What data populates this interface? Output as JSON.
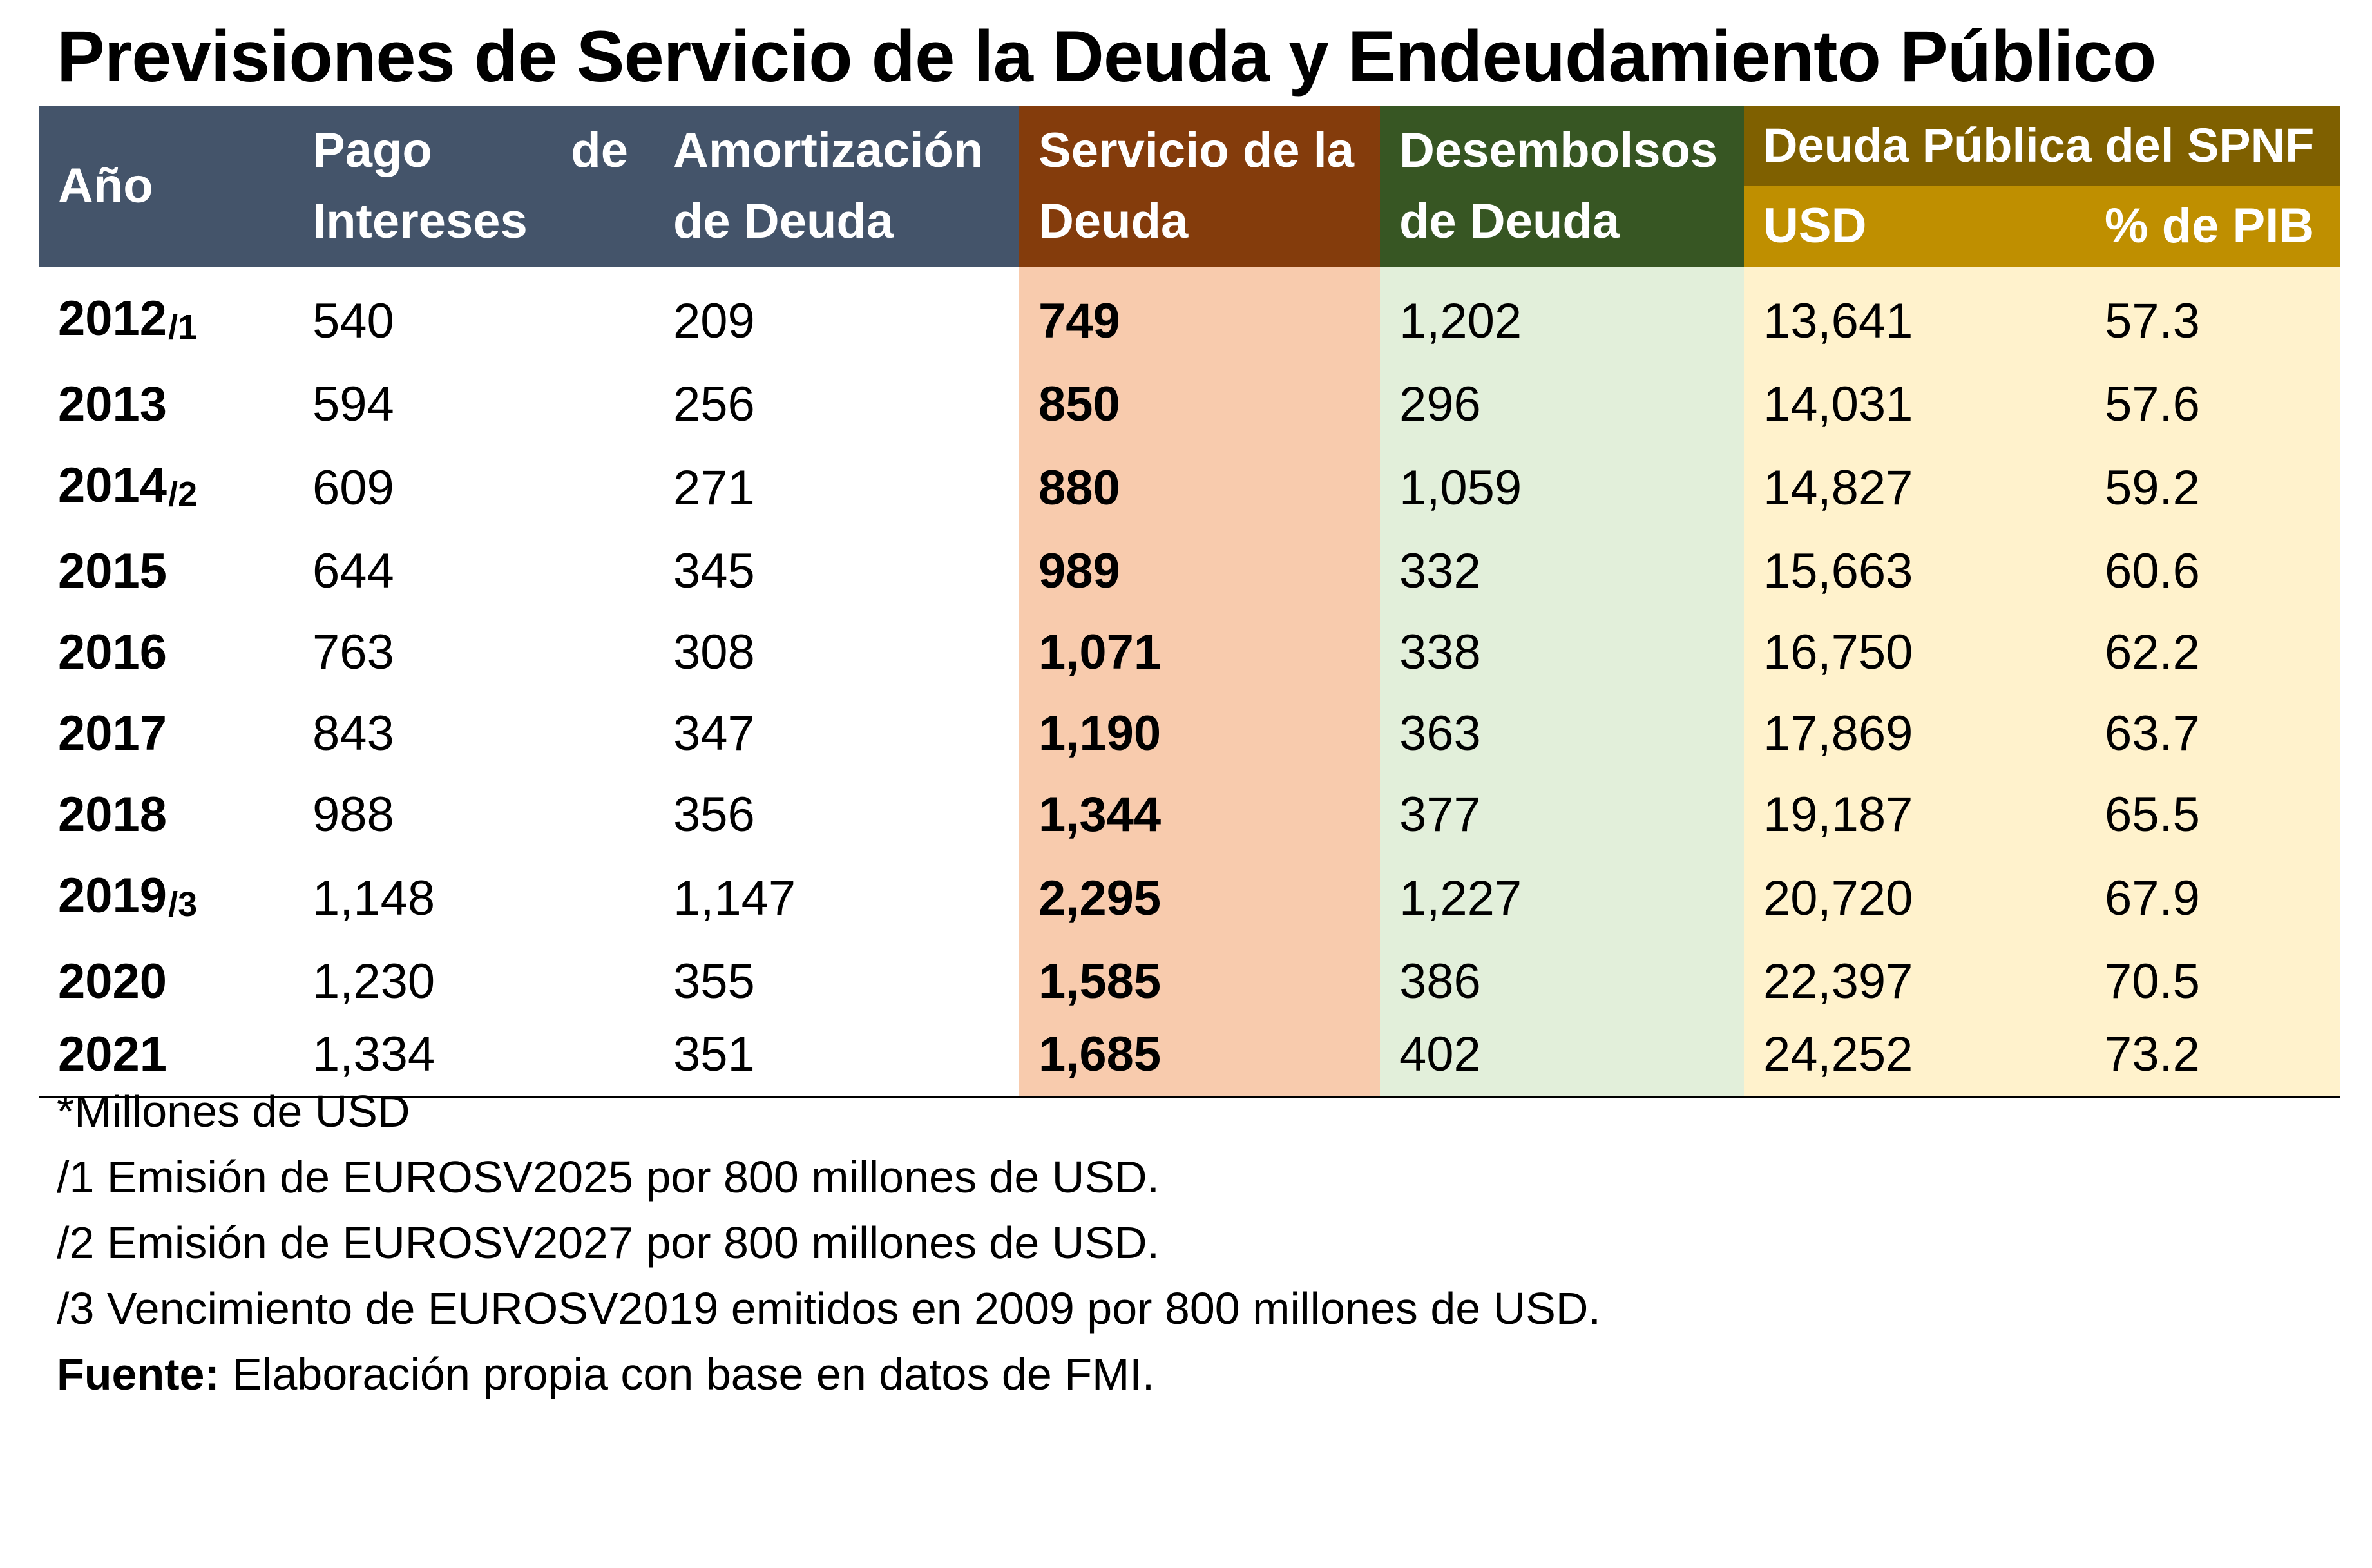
{
  "title": "Previsiones de Servicio de la Deuda y Endeudamiento Público",
  "colors": {
    "header_dark": "#44546a",
    "header_servicio": "#843c0c",
    "header_desembolsos": "#375623",
    "header_deuda": "#7f6000",
    "header_deuda_sub": "#bf8f00",
    "fill_servicio": "#f8cbad",
    "fill_desembolsos": "#e2efda",
    "fill_deuda": "#fff2cc"
  },
  "headers": {
    "anio": "Año",
    "pago_intereses": "Pago de Intereses",
    "amortizacion": "Amortización de Deuda",
    "servicio": "Servicio de la Deuda",
    "desembolsos": "Desembolsos de Deuda",
    "deuda_publica": "Deuda Pública del SPNF",
    "usd": "USD",
    "pib": "% de PIB"
  },
  "chart_data": {
    "type": "table",
    "title": "Previsiones de Servicio de la Deuda y Endeudamiento Público",
    "columns": [
      "Año",
      "Pago de Intereses",
      "Amortización de Deuda",
      "Servicio de la Deuda",
      "Desembolsos de Deuda",
      "USD",
      "% de PIB"
    ],
    "rows": [
      {
        "year": "2012",
        "note": "/1",
        "intereses": "540",
        "amortizacion": "209",
        "servicio": "749",
        "desembolsos": "1,202",
        "usd": "13,641",
        "pib": "57.3"
      },
      {
        "year": "2013",
        "note": "",
        "intereses": "594",
        "amortizacion": "256",
        "servicio": "850",
        "desembolsos": "296",
        "usd": "14,031",
        "pib": "57.6"
      },
      {
        "year": "2014",
        "note": "/2",
        "intereses": "609",
        "amortizacion": "271",
        "servicio": "880",
        "desembolsos": "1,059",
        "usd": "14,827",
        "pib": "59.2"
      },
      {
        "year": "2015",
        "note": "",
        "intereses": "644",
        "amortizacion": "345",
        "servicio": "989",
        "desembolsos": "332",
        "usd": "15,663",
        "pib": "60.6"
      },
      {
        "year": "2016",
        "note": "",
        "intereses": "763",
        "amortizacion": "308",
        "servicio": "1,071",
        "desembolsos": "338",
        "usd": "16,750",
        "pib": "62.2"
      },
      {
        "year": "2017",
        "note": "",
        "intereses": "843",
        "amortizacion": "347",
        "servicio": "1,190",
        "desembolsos": "363",
        "usd": "17,869",
        "pib": "63.7"
      },
      {
        "year": "2018",
        "note": "",
        "intereses": "988",
        "amortizacion": "356",
        "servicio": "1,344",
        "desembolsos": "377",
        "usd": "19,187",
        "pib": "65.5"
      },
      {
        "year": "2019",
        "note": "/3",
        "intereses": "1,148",
        "amortizacion": "1,147",
        "servicio": "2,295",
        "desembolsos": "1,227",
        "usd": "20,720",
        "pib": "67.9"
      },
      {
        "year": "2020",
        "note": "",
        "intereses": "1,230",
        "amortizacion": "355",
        "servicio": "1,585",
        "desembolsos": "386",
        "usd": "22,397",
        "pib": "70.5"
      },
      {
        "year": "2021",
        "note": "",
        "intereses": "1,334",
        "amortizacion": "351",
        "servicio": "1,685",
        "desembolsos": "402",
        "usd": "24,252",
        "pib": "73.2"
      }
    ]
  },
  "notes": {
    "units": "*Millones de USD",
    "n1": "/1 Emisión de EUROSV2025 por 800 millones de USD.",
    "n2": "/2 Emisión de EUROSV2027 por 800 millones de USD.",
    "n3": "/3 Vencimiento de EUROSV2019 emitidos en 2009 por 800 millones de USD.",
    "source_label": "Fuente:",
    "source_text": " Elaboración propia con base en datos de FMI."
  }
}
